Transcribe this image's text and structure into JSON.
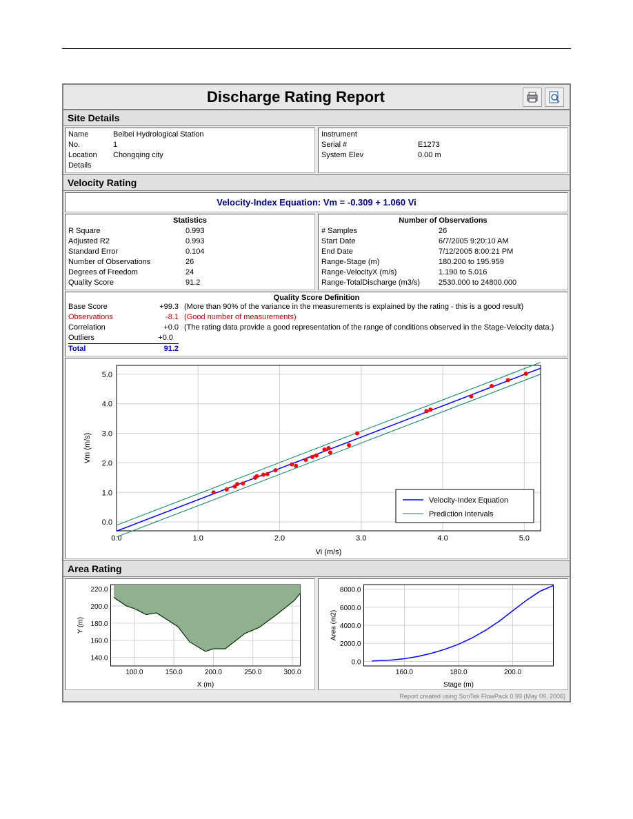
{
  "report": {
    "title": "Discharge Rating Report",
    "footer": "Report created using SonTek FlowPack 0.99 (May 09, 2006)"
  },
  "site_details": {
    "header": "Site Details",
    "left": {
      "name_label": "Name",
      "name_value": "Beibei Hydrological Station",
      "no_label": "No.",
      "no_value": "1",
      "location_label": "Location",
      "location_value": "Chongqing city",
      "details_label": "Details"
    },
    "right": {
      "instrument_label": "Instrument",
      "instrument_value": "",
      "serial_label": "Serial #",
      "serial_value": "E1273",
      "elev_label": "System Elev",
      "elev_value": "0.00 m"
    }
  },
  "velocity_rating": {
    "header": "Velocity Rating",
    "equation": "Velocity-Index Equation: Vm = -0.309 + 1.060 Vi",
    "stats": {
      "header": "Statistics",
      "rows": [
        {
          "label": "R Square",
          "value": "0.993"
        },
        {
          "label": "Adjusted R2",
          "value": "0.993"
        },
        {
          "label": "Standard Error",
          "value": "0.104"
        },
        {
          "label": "Number of Observations",
          "value": "26"
        },
        {
          "label": "Degrees of Freedom",
          "value": "24"
        },
        {
          "label": "Quality Score",
          "value": "91.2"
        }
      ]
    },
    "obs": {
      "header": "Number of Observations",
      "rows": [
        {
          "label": "# Samples",
          "value": "26"
        },
        {
          "label": "Start Date",
          "value": "6/7/2005 9:20:10 AM"
        },
        {
          "label": "End Date",
          "value": "7/12/2005 8:00:21 PM"
        },
        {
          "label": "Range-Stage (m)",
          "value": "180.200 to 195.959"
        },
        {
          "label": "Range-VelocityX (m/s)",
          "value": "1.190 to 5.016"
        },
        {
          "label": "Range-TotalDischarge (m3/s)",
          "value": "2530.000 to 24800.000"
        }
      ]
    },
    "quality": {
      "header": "Quality Score Definition",
      "base_label": "Base Score",
      "base_val": "+99.3",
      "base_desc": "(More than 90% of the variance in the measurements is explained by the rating - this is a good result)",
      "obs_label": "Observations",
      "obs_val": "-8.1",
      "obs_desc": "(Good number of measurements)",
      "corr_label": "Correlation",
      "corr_val": "+0.0",
      "corr_desc": "(The rating data provide a good representation of the range of conditions observed in the Stage-Velocity data.)",
      "out_label": "Outliers",
      "out_val": "+0.0",
      "total_label": "Total",
      "total_val": "91.2"
    }
  },
  "main_chart": {
    "xlim": [
      0.0,
      5.2
    ],
    "ylim": [
      -0.3,
      5.3
    ],
    "xticks": [
      0.0,
      1.0,
      2.0,
      3.0,
      4.0,
      5.0
    ],
    "yticks": [
      0.0,
      1.0,
      2.0,
      3.0,
      4.0,
      5.0
    ],
    "xlabel": "Vi (m/s)",
    "ylabel": "Vm (m/s)",
    "line_color": "#0000ff",
    "interval_color": "#008060",
    "point_color": "#ff0000",
    "grid_color": "#d0d0d0",
    "legend1": "Velocity-Index Equation",
    "legend2": "Prediction Intervals",
    "intercept": -0.309,
    "slope": 1.06,
    "interval_offset": 0.2,
    "points_x": [
      1.19,
      1.35,
      1.45,
      1.48,
      1.55,
      1.7,
      1.72,
      1.8,
      1.85,
      1.95,
      2.15,
      2.2,
      2.32,
      2.4,
      2.45,
      2.55,
      2.6,
      2.62,
      2.85,
      2.95,
      3.8,
      3.85,
      4.35,
      4.6,
      4.8,
      5.02
    ],
    "points_y": [
      1.0,
      1.1,
      1.2,
      1.28,
      1.3,
      1.5,
      1.55,
      1.6,
      1.62,
      1.75,
      1.95,
      1.9,
      2.1,
      2.2,
      2.25,
      2.45,
      2.5,
      2.35,
      2.6,
      3.0,
      3.75,
      3.8,
      4.25,
      4.6,
      4.8,
      5.02
    ]
  },
  "area_rating": {
    "header": "Area Rating",
    "profile_chart": {
      "xlim": [
        70,
        310
      ],
      "ylim": [
        130,
        225
      ],
      "xticks": [
        100,
        150,
        200,
        250,
        300
      ],
      "yticks": [
        140,
        160,
        180,
        200,
        220
      ],
      "xlabel": "X (m)",
      "ylabel": "Y (m)",
      "fill_color": "#90b090",
      "line_color": "#003000",
      "grid_color": "#d0d0d0",
      "points_x": [
        74,
        90,
        100,
        115,
        128,
        155,
        170,
        190,
        200,
        215,
        240,
        258,
        280,
        302,
        310
      ],
      "points_y": [
        210,
        200,
        197,
        190,
        192,
        176,
        158,
        147,
        150,
        150,
        168,
        175,
        190,
        206,
        215
      ]
    },
    "area_chart": {
      "xlim": [
        145,
        215
      ],
      "ylim": [
        -500,
        8500
      ],
      "xticks": [
        160,
        180,
        200
      ],
      "yticks": [
        0,
        2000,
        4000,
        6000,
        8000
      ],
      "xlabel": "Stage (m)",
      "ylabel": "Area (m2)",
      "line_color": "#0000ff",
      "grid_color": "#d0d0d0",
      "points_x": [
        148,
        155,
        160,
        165,
        170,
        175,
        180,
        185,
        190,
        195,
        200,
        205,
        210,
        215
      ],
      "points_y": [
        50,
        150,
        300,
        550,
        900,
        1350,
        1900,
        2600,
        3450,
        4450,
        5600,
        6750,
        7750,
        8400
      ]
    }
  }
}
